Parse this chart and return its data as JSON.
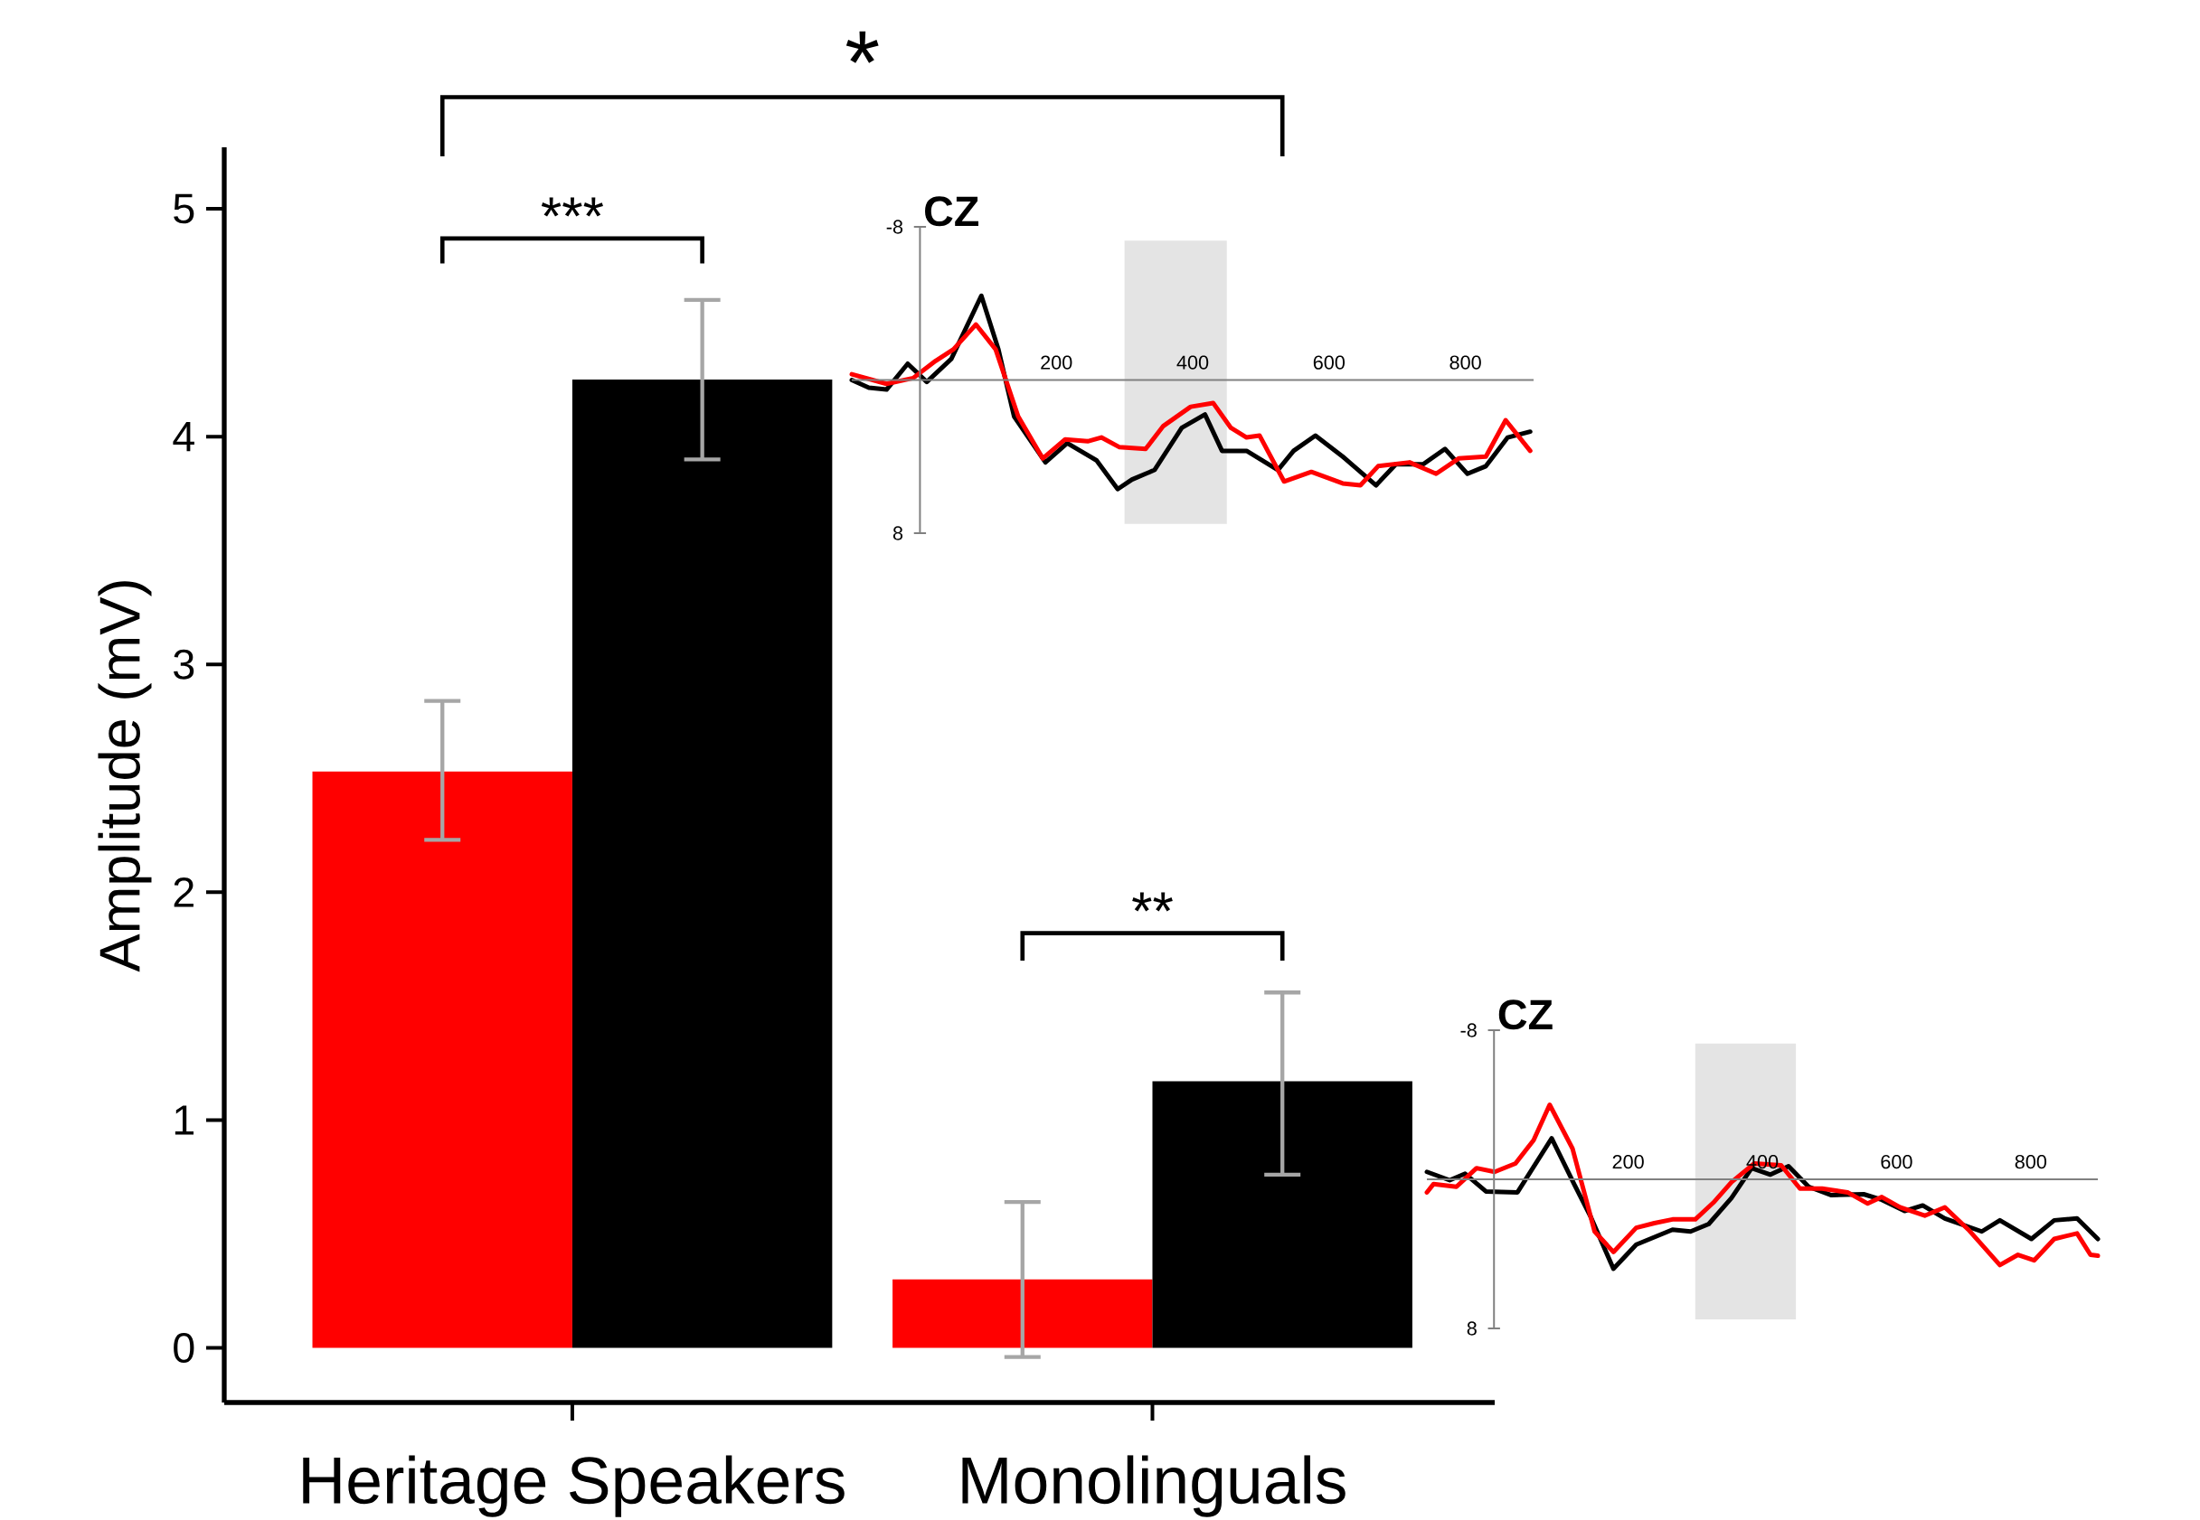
{
  "chart_data": [
    {
      "type": "bar",
      "ylabel": "Amplitude (mV)",
      "categories": [
        "Heritage Speakers",
        "Monolinguals"
      ],
      "series": [
        {
          "color": "#ff0000",
          "values": [
            2.53,
            0.3
          ],
          "errors": [
            [
              2.23,
              2.84
            ],
            [
              -0.04,
              0.64
            ]
          ]
        },
        {
          "color": "#000000",
          "values": [
            4.25,
            1.17
          ],
          "errors": [
            [
              3.9,
              4.6
            ],
            [
              0.76,
              1.56
            ]
          ]
        }
      ],
      "ylim": [
        -0.24,
        5.27
      ],
      "yticks": [
        0,
        1,
        2,
        3,
        4,
        5
      ],
      "annotations": [
        "***",
        "**",
        "*"
      ]
    },
    {
      "type": "line",
      "title": "CZ",
      "xlim": [
        -100,
        900
      ],
      "ylim": [
        8,
        -8
      ],
      "xticks": [
        200,
        400,
        600,
        800
      ],
      "yticks": [
        -8,
        8
      ],
      "bands": [
        {
          "axis": "x",
          "from": 300,
          "to": 450,
          "color": "#e4e4e4"
        }
      ],
      "series": [
        {
          "color": "#000000",
          "x": [
            -100,
            -75,
            -49,
            -18,
            10,
            46,
            90,
            115,
            138,
            184,
            216,
            259,
            290,
            311,
            344,
            384,
            418,
            443,
            479,
            525,
            548,
            580,
            620,
            669,
            698,
            738,
            770,
            803,
            830,
            862,
            895
          ],
          "values": [
            0,
            0.4,
            0.5,
            -0.85,
            0.1,
            -1.1,
            -4.4,
            -1.6,
            1.9,
            4.3,
            3.3,
            4.2,
            5.7,
            5.2,
            4.7,
            2.5,
            1.8,
            3.7,
            3.7,
            4.7,
            3.7,
            2.9,
            4.0,
            5.5,
            4.4,
            4.4,
            3.6,
            4.9,
            4.5,
            3.0,
            2.7
          ]
        },
        {
          "color": "#ff0000",
          "x": [
            -100,
            -49,
            -10,
            23,
            49,
            82,
            111,
            144,
            180,
            213,
            246,
            266,
            292,
            331,
            357,
            397,
            430,
            456,
            479,
            498,
            534,
            574,
            620,
            646,
            672,
            718,
            757,
            790,
            830,
            859,
            895
          ],
          "values": [
            -0.3,
            0.2,
            -0.1,
            -1.0,
            -1.6,
            -2.9,
            -1.6,
            1.9,
            4.1,
            3.1,
            3.2,
            3.0,
            3.5,
            3.6,
            2.4,
            1.4,
            1.2,
            2.5,
            3.0,
            2.9,
            5.3,
            4.8,
            5.4,
            5.5,
            4.5,
            4.3,
            4.9,
            4.1,
            4.0,
            2.1,
            3.7
          ]
        }
      ]
    },
    {
      "type": "line",
      "title": "CZ",
      "xlim": [
        -100,
        900
      ],
      "ylim": [
        8,
        -8
      ],
      "xticks": [
        200,
        400,
        600,
        800
      ],
      "yticks": [
        -8,
        8
      ],
      "bands": [
        {
          "axis": "x",
          "from": 300,
          "to": 450,
          "color": "#e4e4e4"
        }
      ],
      "series": [
        {
          "color": "#000000",
          "x": [
            -100,
            -66,
            -43,
            -12,
            35,
            86,
            120,
            144,
            178,
            212,
            266,
            293,
            320,
            354,
            384,
            412,
            439,
            469,
            503,
            551,
            578,
            612,
            639,
            672,
            727,
            754,
            801,
            835,
            869,
            900
          ],
          "values": [
            -0.4,
            0.05,
            -0.3,
            0.65,
            0.7,
            -2.2,
            0.3,
            2.0,
            4.8,
            3.5,
            2.7,
            2.8,
            2.4,
            1.0,
            -0.6,
            -0.25,
            -0.7,
            0.4,
            0.85,
            0.8,
            1.1,
            1.7,
            1.4,
            2.1,
            2.8,
            2.2,
            3.2,
            2.2,
            2.1,
            3.2
          ]
        },
        {
          "color": "#ff0000",
          "x": [
            -100,
            -90,
            -56,
            -26,
            1,
            32,
            59,
            83,
            117,
            150,
            178,
            212,
            239,
            266,
            300,
            327,
            354,
            388,
            428,
            456,
            489,
            527,
            557,
            578,
            605,
            642,
            672,
            707,
            754,
            781,
            805,
            835,
            869,
            889,
            900
          ],
          "values": [
            0.7,
            0.25,
            0.4,
            -0.6,
            -0.4,
            -0.85,
            -2.1,
            -4.0,
            -1.65,
            2.8,
            3.9,
            2.6,
            2.35,
            2.15,
            2.15,
            1.25,
            0.15,
            -0.85,
            -0.75,
            0.5,
            0.5,
            0.7,
            1.3,
            0.95,
            1.5,
            1.95,
            1.5,
            2.7,
            4.6,
            4.05,
            4.35,
            3.2,
            2.9,
            4.05,
            4.1
          ]
        }
      ]
    }
  ]
}
